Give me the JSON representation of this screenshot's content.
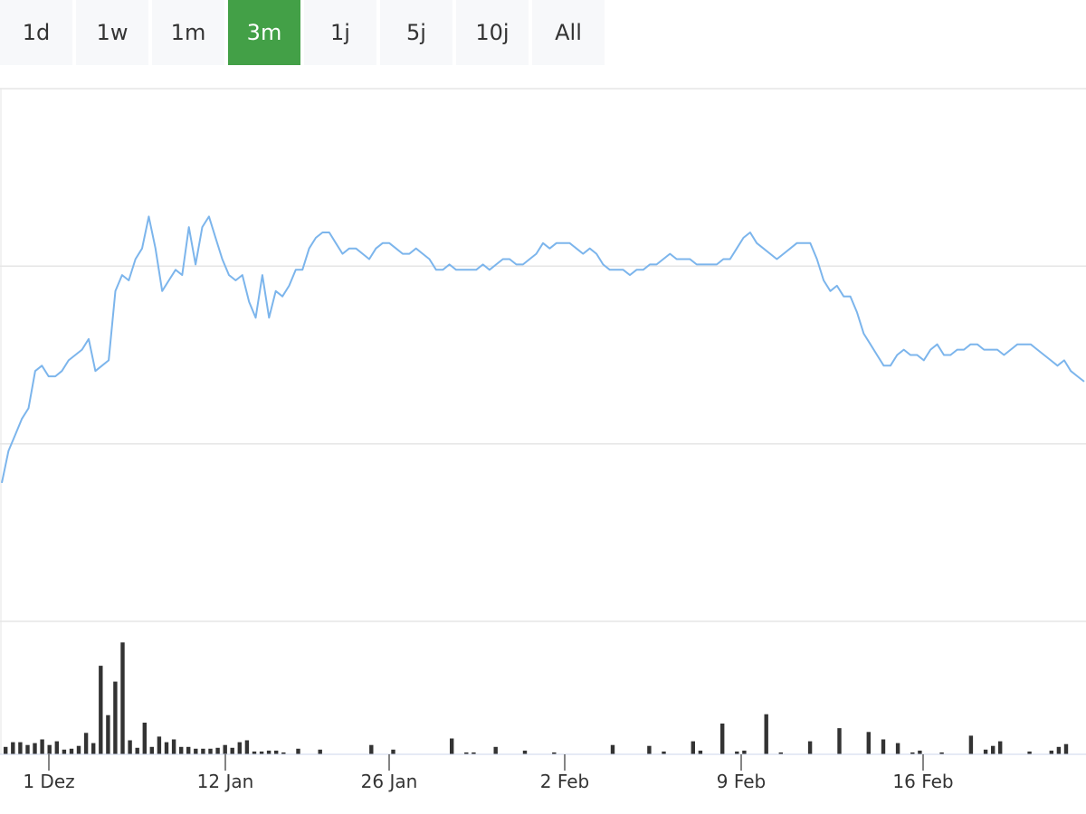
{
  "range_selector": {
    "buttons": [
      "1d",
      "1w",
      "1m",
      "3m",
      "1j",
      "5j",
      "10j",
      "All"
    ],
    "active": "3m"
  },
  "colors": {
    "accent": "#43a047",
    "line": "#7cb5ec",
    "volume": "#333333",
    "grid": "#e6e6e6",
    "button_bg": "#f7f8fa"
  },
  "chart_data": {
    "type": "line",
    "subplots": [
      "price",
      "volume"
    ],
    "x_tick_labels": [
      "1 Dez",
      "12 Jan",
      "26 Jan",
      "2 Feb",
      "9 Feb",
      "16 Feb"
    ],
    "grid": true,
    "price": {
      "ylim": [
        0,
        100
      ],
      "values": [
        26,
        32,
        35,
        38,
        40,
        47,
        48,
        46,
        46,
        47,
        49,
        50,
        51,
        53,
        47,
        48,
        49,
        62,
        65,
        64,
        68,
        70,
        76,
        70,
        62,
        64,
        66,
        65,
        74,
        67,
        74,
        76,
        72,
        68,
        65,
        64,
        65,
        60,
        57,
        65,
        57,
        62,
        61,
        63,
        66,
        66,
        70,
        72,
        73,
        73,
        71,
        69,
        70,
        70,
        69,
        68,
        70,
        71,
        71,
        70,
        69,
        69,
        70,
        69,
        68,
        66,
        66,
        67,
        66,
        66,
        66,
        66,
        67,
        66,
        67,
        68,
        68,
        67,
        67,
        68,
        69,
        71,
        70,
        71,
        71,
        71,
        70,
        69,
        70,
        69,
        67,
        66,
        66,
        66,
        65,
        66,
        66,
        67,
        67,
        68,
        69,
        68,
        68,
        68,
        67,
        67,
        67,
        67,
        68,
        68,
        70,
        72,
        73,
        71,
        70,
        69,
        68,
        69,
        70,
        71,
        71,
        71,
        68,
        64,
        62,
        63,
        61,
        61,
        58,
        54,
        52,
        50,
        48,
        48,
        50,
        51,
        50,
        50,
        49,
        51,
        52,
        50,
        50,
        51,
        51,
        52,
        52,
        51,
        51,
        51,
        50,
        51,
        52,
        52,
        52,
        51,
        50,
        49,
        48,
        49,
        47,
        46,
        45
      ],
      "line_color": "#7cb5ec"
    },
    "volume": {
      "ylim": [
        0,
        130
      ],
      "values": [
        8,
        13,
        13,
        10,
        12,
        16,
        10,
        14,
        5,
        6,
        9,
        23,
        12,
        95,
        42,
        78,
        120,
        15,
        7,
        34,
        8,
        19,
        13,
        16,
        8,
        8,
        6,
        6,
        6,
        7,
        10,
        7,
        13,
        15,
        3,
        3,
        4,
        4,
        2,
        0,
        6,
        0,
        0,
        5,
        0,
        0,
        0,
        0,
        0,
        0,
        10,
        0,
        0,
        5,
        0,
        0,
        0,
        0,
        0,
        0,
        0,
        17,
        0,
        2,
        2,
        0,
        0,
        8,
        0,
        0,
        0,
        4,
        0,
        0,
        0,
        2,
        0,
        0,
        0,
        0,
        0,
        0,
        0,
        10,
        0,
        0,
        0,
        0,
        9,
        0,
        3,
        0,
        0,
        0,
        14,
        4,
        0,
        0,
        33,
        0,
        3,
        4,
        0,
        0,
        43,
        0,
        2,
        0,
        0,
        0,
        14,
        0,
        0,
        0,
        28,
        0,
        0,
        0,
        24,
        0,
        16,
        0,
        12,
        0,
        2,
        4,
        0,
        0,
        2,
        0,
        0,
        0,
        20,
        0,
        5,
        9,
        14,
        0,
        0,
        0,
        3,
        0,
        0,
        4,
        8,
        11,
        0,
        0
      ],
      "bar_color": "#333333"
    }
  }
}
